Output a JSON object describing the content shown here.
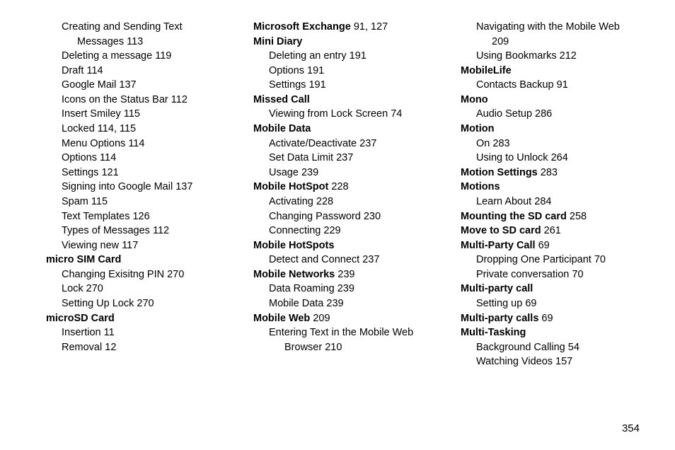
{
  "page_number": "354",
  "columns": [
    [
      {
        "text": "Creating and Sending Text",
        "page": "",
        "bold": false,
        "lvl": 1
      },
      {
        "text": "Messages",
        "page": "113",
        "bold": false,
        "lvl": 2
      },
      {
        "text": "Deleting a message",
        "page": "119",
        "bold": false,
        "lvl": 1
      },
      {
        "text": "Draft",
        "page": "114",
        "bold": false,
        "lvl": 1
      },
      {
        "text": "Google Mail",
        "page": "137",
        "bold": false,
        "lvl": 1
      },
      {
        "text": "Icons on the Status Bar",
        "page": "112",
        "bold": false,
        "lvl": 1
      },
      {
        "text": "Insert Smiley",
        "page": "115",
        "bold": false,
        "lvl": 1
      },
      {
        "text": "Locked",
        "page": "114, 115",
        "bold": false,
        "lvl": 1
      },
      {
        "text": "Menu Options",
        "page": "114",
        "bold": false,
        "lvl": 1
      },
      {
        "text": "Options",
        "page": "114",
        "bold": false,
        "lvl": 1
      },
      {
        "text": "Settings",
        "page": "121",
        "bold": false,
        "lvl": 1
      },
      {
        "text": "Signing into Google Mail",
        "page": "137",
        "bold": false,
        "lvl": 1
      },
      {
        "text": "Spam",
        "page": "115",
        "bold": false,
        "lvl": 1
      },
      {
        "text": "Text Templates",
        "page": "126",
        "bold": false,
        "lvl": 1
      },
      {
        "text": "Types of Messages",
        "page": "112",
        "bold": false,
        "lvl": 1
      },
      {
        "text": "Viewing new",
        "page": "117",
        "bold": false,
        "lvl": 1
      },
      {
        "text": "micro SIM Card",
        "page": "",
        "bold": true,
        "lvl": 0
      },
      {
        "text": "Changing Exisitng PIN",
        "page": "270",
        "bold": false,
        "lvl": 1
      },
      {
        "text": "Lock",
        "page": "270",
        "bold": false,
        "lvl": 1
      },
      {
        "text": "Setting Up Lock",
        "page": "270",
        "bold": false,
        "lvl": 1
      },
      {
        "text": "microSD Card",
        "page": "",
        "bold": true,
        "lvl": 0
      },
      {
        "text": "Insertion",
        "page": "11",
        "bold": false,
        "lvl": 1
      },
      {
        "text": "Removal",
        "page": "12",
        "bold": false,
        "lvl": 1
      }
    ],
    [
      {
        "text": "Microsoft Exchange",
        "page": "91, 127",
        "bold": true,
        "lvl": 0
      },
      {
        "text": "Mini Diary",
        "page": "",
        "bold": true,
        "lvl": 0
      },
      {
        "text": "Deleting an entry",
        "page": "191",
        "bold": false,
        "lvl": 1
      },
      {
        "text": "Options",
        "page": "191",
        "bold": false,
        "lvl": 1
      },
      {
        "text": "Settings",
        "page": "191",
        "bold": false,
        "lvl": 1
      },
      {
        "text": "Missed Call",
        "page": "",
        "bold": true,
        "lvl": 0
      },
      {
        "text": "Viewing from Lock Screen",
        "page": "74",
        "bold": false,
        "lvl": 1
      },
      {
        "text": "Mobile Data",
        "page": "",
        "bold": true,
        "lvl": 0
      },
      {
        "text": "Activate/Deactivate",
        "page": "237",
        "bold": false,
        "lvl": 1
      },
      {
        "text": "Set Data Limit",
        "page": "237",
        "bold": false,
        "lvl": 1
      },
      {
        "text": "Usage",
        "page": "239",
        "bold": false,
        "lvl": 1
      },
      {
        "text": "Mobile HotSpot",
        "page": "228",
        "bold": true,
        "lvl": 0
      },
      {
        "text": "Activating",
        "page": "228",
        "bold": false,
        "lvl": 1
      },
      {
        "text": "Changing Password",
        "page": "230",
        "bold": false,
        "lvl": 1
      },
      {
        "text": "Connecting",
        "page": "229",
        "bold": false,
        "lvl": 1
      },
      {
        "text": "Mobile HotSpots",
        "page": "",
        "bold": true,
        "lvl": 0
      },
      {
        "text": "Detect and Connect",
        "page": "237",
        "bold": false,
        "lvl": 1
      },
      {
        "text": "Mobile Networks",
        "page": "239",
        "bold": true,
        "lvl": 0
      },
      {
        "text": "Data Roaming",
        "page": "239",
        "bold": false,
        "lvl": 1
      },
      {
        "text": "Mobile Data",
        "page": "239",
        "bold": false,
        "lvl": 1
      },
      {
        "text": "Mobile Web",
        "page": "209",
        "bold": true,
        "lvl": 0
      },
      {
        "text": "Entering Text in the Mobile Web",
        "page": "",
        "bold": false,
        "lvl": 1
      },
      {
        "text": "Browser",
        "page": "210",
        "bold": false,
        "lvl": 2
      }
    ],
    [
      {
        "text": "Navigating with the Mobile Web",
        "page": "",
        "bold": false,
        "lvl": 1
      },
      {
        "text": "",
        "page": "209",
        "bold": false,
        "lvl": 2
      },
      {
        "text": "Using Bookmarks",
        "page": "212",
        "bold": false,
        "lvl": 1
      },
      {
        "text": "MobileLife",
        "page": "",
        "bold": true,
        "lvl": 0
      },
      {
        "text": "Contacts Backup",
        "page": "91",
        "bold": false,
        "lvl": 1
      },
      {
        "text": "Mono",
        "page": "",
        "bold": true,
        "lvl": 0
      },
      {
        "text": "Audio Setup",
        "page": "286",
        "bold": false,
        "lvl": 1
      },
      {
        "text": "Motion",
        "page": "",
        "bold": true,
        "lvl": 0
      },
      {
        "text": "On",
        "page": "283",
        "bold": false,
        "lvl": 1
      },
      {
        "text": "Using to Unlock",
        "page": "264",
        "bold": false,
        "lvl": 1
      },
      {
        "text": "Motion Settings",
        "page": "283",
        "bold": true,
        "lvl": 0
      },
      {
        "text": "Motions",
        "page": "",
        "bold": true,
        "lvl": 0
      },
      {
        "text": "Learn About",
        "page": "284",
        "bold": false,
        "lvl": 1
      },
      {
        "text": "Mounting the SD card",
        "page": "258",
        "bold": true,
        "lvl": 0
      },
      {
        "text": "Move to SD card",
        "page": "261",
        "bold": true,
        "lvl": 0
      },
      {
        "text": "Multi-Party Call",
        "page": "69",
        "bold": true,
        "lvl": 0
      },
      {
        "text": "Dropping One Participant",
        "page": "70",
        "bold": false,
        "lvl": 1
      },
      {
        "text": "Private conversation",
        "page": "70",
        "bold": false,
        "lvl": 1
      },
      {
        "text": "Multi-party call",
        "page": "",
        "bold": true,
        "lvl": 0
      },
      {
        "text": "Setting up",
        "page": "69",
        "bold": false,
        "lvl": 1
      },
      {
        "text": "Multi-party calls",
        "page": "69",
        "bold": true,
        "lvl": 0
      },
      {
        "text": "Multi-Tasking",
        "page": "",
        "bold": true,
        "lvl": 0
      },
      {
        "text": "Background Calling",
        "page": "54",
        "bold": false,
        "lvl": 1
      },
      {
        "text": "Watching Videos",
        "page": "157",
        "bold": false,
        "lvl": 1
      }
    ]
  ]
}
